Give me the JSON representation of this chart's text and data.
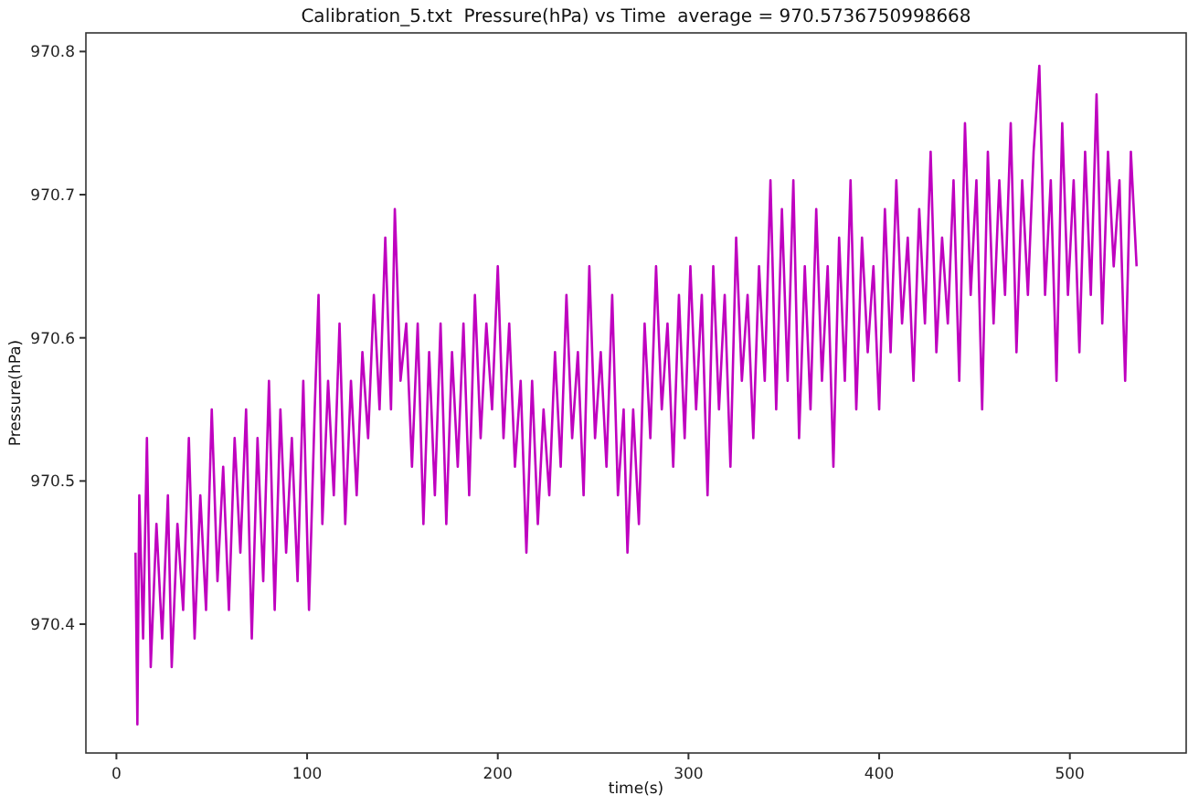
{
  "chart_data": {
    "type": "line",
    "title": "Calibration_5.txt  Pressure(hPa) vs Time  average = 970.5736750998668",
    "xlabel": "time(s)",
    "ylabel": "Pressure(hPa)",
    "xlim": [
      -16,
      561
    ],
    "ylim": [
      970.31,
      970.813
    ],
    "xticks": [
      0,
      100,
      200,
      300,
      400,
      500
    ],
    "yticks": [
      970.4,
      970.5,
      970.6,
      970.7,
      970.8
    ],
    "grid": false,
    "marker": "none",
    "line_style": "solid",
    "series": [
      {
        "color": "#bf00bf",
        "x": [
          10,
          11,
          12,
          14,
          16,
          18,
          21,
          24,
          27,
          29,
          32,
          35,
          38,
          41,
          44,
          47,
          50,
          53,
          56,
          59,
          62,
          65,
          68,
          71,
          74,
          77,
          80,
          83,
          86,
          89,
          92,
          95,
          98,
          101,
          104,
          106,
          108,
          111,
          114,
          117,
          120,
          123,
          126,
          129,
          132,
          135,
          138,
          141,
          144,
          146,
          149,
          152,
          155,
          158,
          161,
          164,
          167,
          170,
          173,
          176,
          179,
          182,
          185,
          188,
          191,
          194,
          197,
          200,
          203,
          206,
          209,
          212,
          215,
          218,
          221,
          224,
          227,
          230,
          233,
          236,
          239,
          242,
          245,
          248,
          251,
          254,
          257,
          260,
          263,
          266,
          268,
          271,
          274,
          277,
          280,
          283,
          286,
          289,
          292,
          295,
          298,
          301,
          304,
          307,
          310,
          313,
          316,
          319,
          322,
          325,
          328,
          331,
          334,
          337,
          340,
          343,
          346,
          349,
          352,
          355,
          358,
          361,
          364,
          367,
          370,
          373,
          376,
          379,
          382,
          385,
          388,
          391,
          394,
          397,
          400,
          403,
          406,
          409,
          412,
          415,
          418,
          421,
          424,
          427,
          430,
          433,
          436,
          439,
          442,
          445,
          448,
          451,
          454,
          457,
          460,
          463,
          466,
          469,
          472,
          475,
          478,
          481,
          484,
          487,
          490,
          493,
          496,
          499,
          502,
          505,
          508,
          511,
          514,
          517,
          520,
          523,
          526,
          529,
          532,
          535
        ],
        "values": [
          970.45,
          970.33,
          970.49,
          970.39,
          970.53,
          970.37,
          970.47,
          970.39,
          970.49,
          970.37,
          970.47,
          970.41,
          970.53,
          970.39,
          970.49,
          970.41,
          970.55,
          970.43,
          970.51,
          970.41,
          970.53,
          970.45,
          970.55,
          970.39,
          970.53,
          970.43,
          970.57,
          970.41,
          970.55,
          970.45,
          970.53,
          970.43,
          970.57,
          970.41,
          970.55,
          970.63,
          970.47,
          970.57,
          970.49,
          970.61,
          970.47,
          970.57,
          970.49,
          970.59,
          970.53,
          970.63,
          970.55,
          970.67,
          970.55,
          970.69,
          970.57,
          970.61,
          970.51,
          970.61,
          970.47,
          970.59,
          970.49,
          970.61,
          970.47,
          970.59,
          970.51,
          970.61,
          970.49,
          970.63,
          970.53,
          970.61,
          970.55,
          970.65,
          970.53,
          970.61,
          970.51,
          970.57,
          970.45,
          970.57,
          970.47,
          970.55,
          970.49,
          970.59,
          970.51,
          970.63,
          970.53,
          970.59,
          970.49,
          970.65,
          970.53,
          970.59,
          970.51,
          970.63,
          970.49,
          970.55,
          970.45,
          970.55,
          970.47,
          970.61,
          970.53,
          970.65,
          970.55,
          970.61,
          970.51,
          970.63,
          970.53,
          970.65,
          970.55,
          970.63,
          970.49,
          970.65,
          970.55,
          970.63,
          970.51,
          970.67,
          970.57,
          970.63,
          970.53,
          970.65,
          970.57,
          970.71,
          970.55,
          970.69,
          970.57,
          970.71,
          970.53,
          970.65,
          970.55,
          970.69,
          970.57,
          970.65,
          970.51,
          970.67,
          970.57,
          970.71,
          970.55,
          970.67,
          970.59,
          970.65,
          970.55,
          970.69,
          970.59,
          970.71,
          970.61,
          970.67,
          970.57,
          970.69,
          970.61,
          970.73,
          970.59,
          970.67,
          970.61,
          970.71,
          970.57,
          970.75,
          970.63,
          970.71,
          970.55,
          970.73,
          970.61,
          970.71,
          970.63,
          970.75,
          970.59,
          970.71,
          970.63,
          970.73,
          970.79,
          970.63,
          970.71,
          970.57,
          970.75,
          970.63,
          970.71,
          970.59,
          970.73,
          970.63,
          970.77,
          970.61,
          970.73,
          970.65,
          970.71,
          970.57,
          970.73,
          970.65
        ]
      }
    ]
  }
}
